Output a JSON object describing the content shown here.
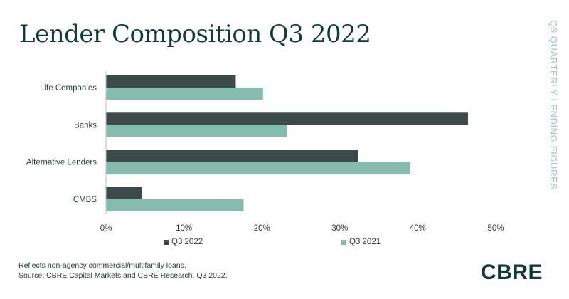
{
  "title": "Lender Composition Q3 2022",
  "side_label": "Q3 QUARTERLY LENDING FIGURES",
  "footnote": {
    "line1": "Reflects non-agency commercial/multifamily loans.",
    "line2": "Source: CBRE Capital Markets and CBRE Research, Q3 2022."
  },
  "logo": "CBRE",
  "colors": {
    "q3_2022": "#3d4a4a",
    "q3_2021": "#86bcae"
  },
  "chart_data": {
    "type": "bar",
    "orientation": "horizontal",
    "categories": [
      "Life Companies",
      "Banks",
      "Alternative Lenders",
      "CMBS"
    ],
    "series": [
      {
        "name": "Q3 2022",
        "values": [
          16.6,
          46.4,
          32.3,
          4.6
        ]
      },
      {
        "name": "Q3 2021",
        "values": [
          20.1,
          23.2,
          39.0,
          17.6
        ]
      }
    ],
    "xlim": [
      0,
      50
    ],
    "xticks": [
      0,
      10,
      20,
      30,
      40,
      50
    ],
    "tick_labels": [
      "0%",
      "10%",
      "20%",
      "30%",
      "40%",
      "50%"
    ],
    "xlabel": "",
    "ylabel": "",
    "legend_position": "bottom",
    "grid": false
  }
}
